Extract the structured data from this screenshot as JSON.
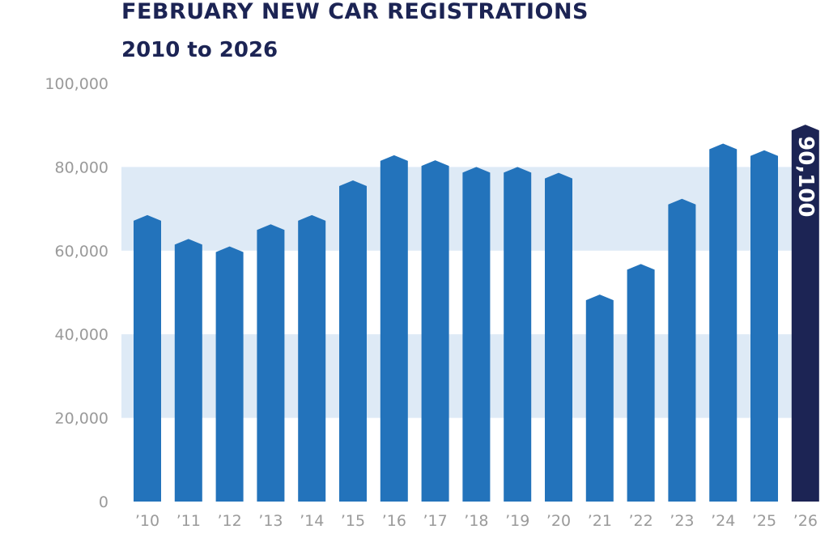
{
  "chart_data": {
    "type": "bar",
    "title": "FEBRUARY NEW CAR REGISTRATIONS",
    "subtitle": "2010 to 2026",
    "xlabel": "",
    "ylabel": "",
    "categories": [
      "’10",
      "’11",
      "’12",
      "’13",
      "’14",
      "’15",
      "’16",
      "’17",
      "’18",
      "’19",
      "’20",
      "’21",
      "’22",
      "’23",
      "’24",
      "’25",
      "’26"
    ],
    "values": [
      68500,
      62800,
      61000,
      66300,
      68500,
      76800,
      82800,
      81600,
      80000,
      80000,
      78600,
      49500,
      56800,
      72400,
      85600,
      84000,
      90100
    ],
    "ylim": [
      0,
      100000
    ],
    "yticks": [
      0,
      20000,
      40000,
      60000,
      80000,
      100000
    ],
    "ytick_labels": [
      "0",
      "20,000",
      "40,000",
      "60,000",
      "80,000",
      "100,000"
    ],
    "highlight": {
      "index": 16,
      "label": "90,100"
    },
    "colors": {
      "bar": "#2373bb",
      "highlight_bar": "#1c2454",
      "band": "#deeaf6",
      "title": "#1c2454",
      "axis_text": "#9a9a9a"
    },
    "grid": "alternating horizontal bands",
    "legend": "none"
  }
}
